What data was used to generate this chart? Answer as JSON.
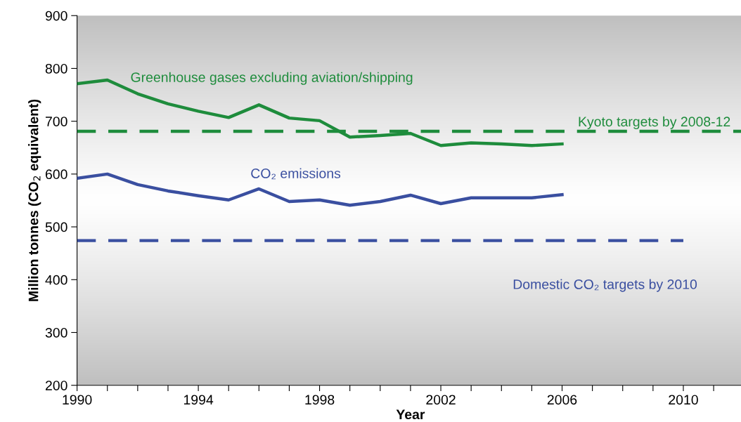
{
  "chart_data": {
    "type": "line",
    "xlabel": "Year",
    "ylabel": "Million tonnes (CO$_{2}$ equivalent)",
    "x": [
      1990,
      1991,
      1992,
      1993,
      1994,
      1995,
      1996,
      1997,
      1998,
      1999,
      2000,
      2001,
      2002,
      2003,
      2004,
      2005,
      2006
    ],
    "series": [
      {
        "name": "Greenhouse gases excluding aviation/shipping",
        "color": "#1e8c3c",
        "values": [
          771,
          778,
          752,
          733,
          719,
          707,
          731,
          706,
          701,
          670,
          673,
          677,
          654,
          659,
          657,
          654,
          657
        ]
      },
      {
        "name": "CO₂ emissions",
        "color": "#3a4fa0",
        "values": [
          592,
          600,
          580,
          568,
          559,
          551,
          572,
          548,
          551,
          541,
          548,
          560,
          544,
          555,
          555,
          555,
          561
        ]
      },
      {
        "name": "Kyoto targets by 2008-12",
        "color": "#1e8c3c",
        "line_style": "dashed",
        "x": [
          1990,
          2012
        ],
        "values": [
          681,
          681
        ]
      },
      {
        "name": "Domestic CO₂ targets by 2010",
        "color": "#3a4fa0",
        "line_style": "dashed",
        "x": [
          1990,
          2010
        ],
        "values": [
          474,
          474
        ]
      }
    ],
    "xlim": [
      1990,
      2012
    ],
    "xticks": [
      1990,
      {
        "value": 1991,
        "label": null
      },
      {
        "value": 1992,
        "label": null
      },
      {
        "value": 1993,
        "label": null
      },
      1994,
      {
        "value": 1995,
        "label": null
      },
      {
        "value": 1996,
        "label": null
      },
      {
        "value": 1997,
        "label": null
      },
      1998,
      {
        "value": 1999,
        "label": null
      },
      {
        "value": 2000,
        "label": null
      },
      {
        "value": 2001,
        "label": null
      },
      2002,
      {
        "value": 2003,
        "label": null
      },
      {
        "value": 2004,
        "label": null
      },
      {
        "value": 2005,
        "label": null
      },
      2006,
      {
        "value": 2007,
        "label": null
      },
      {
        "value": 2008,
        "label": null
      },
      {
        "value": 2009,
        "label": null
      },
      2010,
      {
        "value": 2011,
        "label": null
      },
      {
        "value": 2012,
        "label": null
      }
    ],
    "ylim": [
      200,
      900
    ],
    "yticks": [
      200,
      300,
      400,
      500,
      600,
      700,
      800,
      900
    ],
    "grid": false,
    "legend": false,
    "marker": "none",
    "line_style": "solid"
  }
}
